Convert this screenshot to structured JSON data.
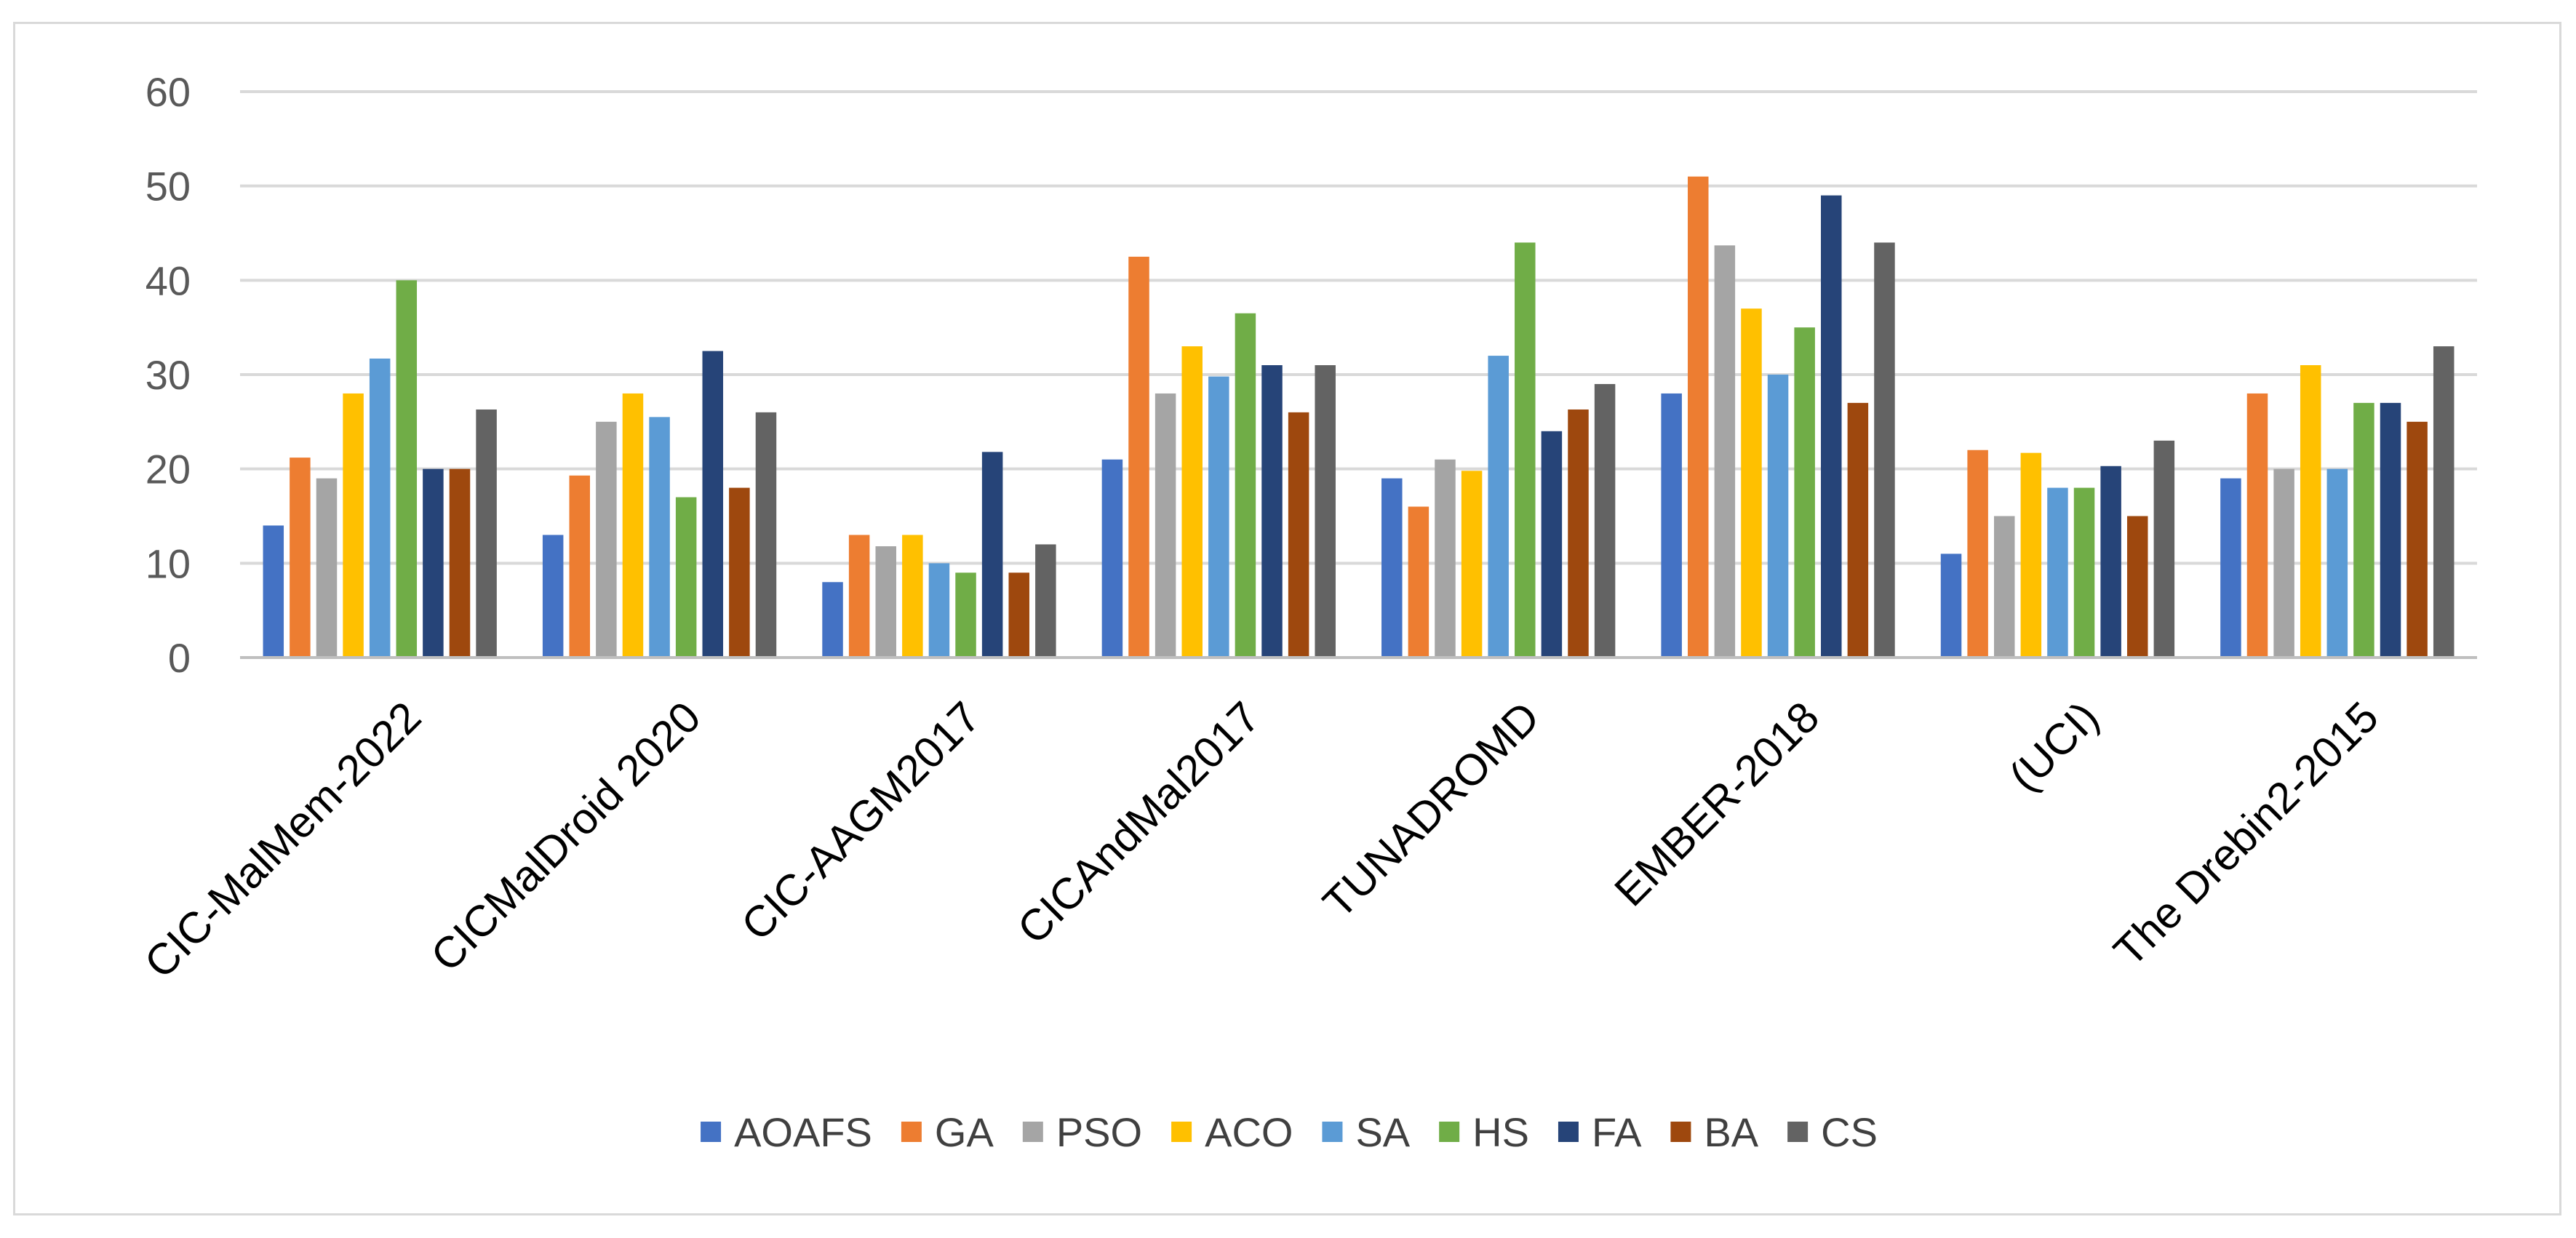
{
  "chart_data": {
    "type": "bar",
    "title": "",
    "xlabel": "",
    "ylabel": "",
    "ylim": [
      0,
      60
    ],
    "yticks": [
      0,
      10,
      20,
      30,
      40,
      50,
      60
    ],
    "grid": true,
    "legend_position": "bottom",
    "categories": [
      "CIC-MalMem-2022",
      "CICMalDroid 2020",
      "CIC-AAGM2017",
      "CICAndMal2017",
      "TUNADROMD",
      "EMBER-2018",
      "(UCI)",
      "The Drebin2-2015"
    ],
    "series": [
      {
        "name": "AOAFS",
        "color": "#4472C4",
        "values": [
          14,
          13,
          8,
          21,
          19,
          28,
          11,
          19
        ]
      },
      {
        "name": "GA",
        "color": "#ED7D31",
        "values": [
          21.2,
          19.3,
          13,
          42.5,
          16,
          51,
          22,
          28
        ]
      },
      {
        "name": "PSO",
        "color": "#A5A5A5",
        "values": [
          19,
          25,
          11.8,
          28,
          21,
          43.7,
          15,
          20
        ]
      },
      {
        "name": "ACO",
        "color": "#FFC000",
        "values": [
          28,
          28,
          13,
          33,
          19.8,
          37,
          21.7,
          31
        ]
      },
      {
        "name": "SA",
        "color": "#5B9BD5",
        "values": [
          31.7,
          25.5,
          10,
          29.8,
          32,
          30,
          18,
          20
        ]
      },
      {
        "name": "HS",
        "color": "#70AD47",
        "values": [
          40,
          17,
          9,
          36.5,
          44,
          35,
          18,
          27
        ]
      },
      {
        "name": "FA",
        "color": "#264478",
        "values": [
          20,
          32.5,
          21.8,
          31,
          24,
          49,
          20.3,
          27
        ]
      },
      {
        "name": "BA",
        "color": "#9E480E",
        "values": [
          20,
          18,
          9,
          26,
          26.3,
          27,
          15,
          25
        ]
      },
      {
        "name": "CS",
        "color": "#636363",
        "values": [
          26.3,
          26,
          12,
          31,
          29,
          44,
          23,
          33
        ]
      }
    ],
    "gridline_color": "#d9d9d9",
    "axis_color": "#bfbfbf"
  }
}
